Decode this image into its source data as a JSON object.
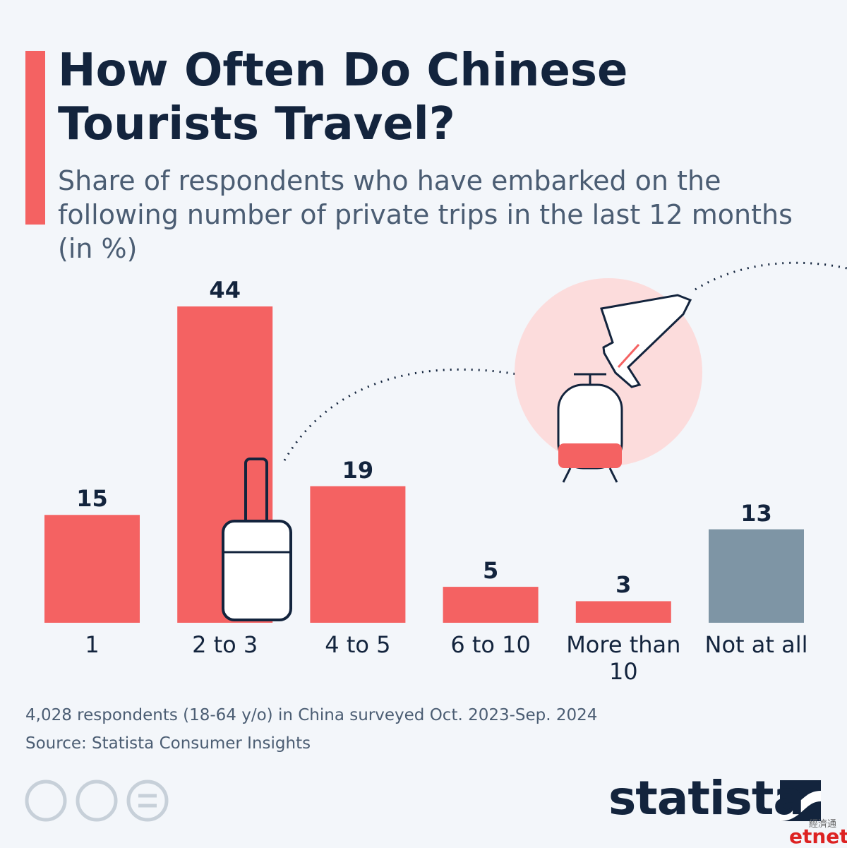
{
  "chart_data": {
    "type": "bar",
    "title": "How Often Do Chinese Tourists Travel?",
    "subtitle": "Share of respondents who have embarked on the following number of private trips in the last 12 months (in %)",
    "categories": [
      "1",
      "2 to 3",
      "4 to 5",
      "6 to 10",
      "More than 10",
      "Not at all"
    ],
    "values": [
      15,
      44,
      19,
      5,
      3,
      13
    ],
    "colors": [
      "#f46262",
      "#f46262",
      "#f46262",
      "#f46262",
      "#f46262",
      "#7e95a5"
    ],
    "note": "4,028 respondents (18-64 y/o) in China surveyed Oct. 2023-Sep. 2024",
    "source": "Source: Statista Consumer Insights"
  },
  "branding": {
    "logo": "statista",
    "watermark_cn": "經濟通",
    "watermark": "etnet"
  }
}
